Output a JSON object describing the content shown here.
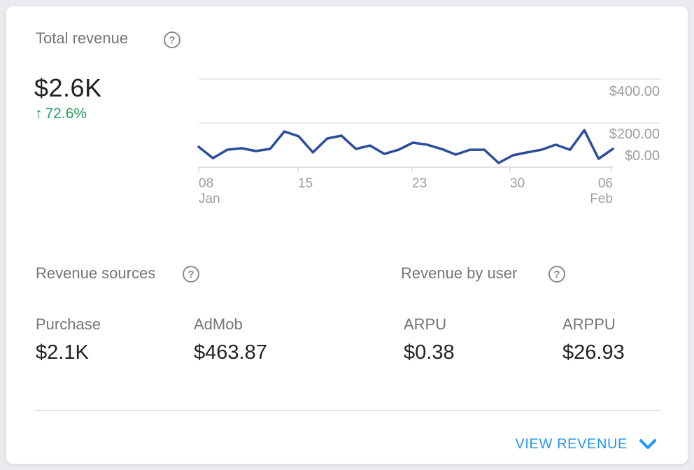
{
  "card": {
    "title": "Total revenue",
    "help_glyph": "?",
    "big_value": "$2.6K",
    "trend": {
      "arrow": "↑",
      "value": "72.6%",
      "color": "#1e9e5a"
    },
    "sections": [
      {
        "title": "Revenue sources",
        "metrics": [
          {
            "label": "Purchase",
            "value": "$2.1K"
          },
          {
            "label": "AdMob",
            "value": "$463.87"
          }
        ]
      },
      {
        "title": "Revenue by user",
        "metrics": [
          {
            "label": "ARPU",
            "value": "$0.38"
          },
          {
            "label": "ARPPU",
            "value": "$26.93"
          }
        ]
      }
    ],
    "footer": {
      "action_label": "VIEW REVENUE"
    }
  },
  "chart_data": {
    "type": "line",
    "title": "Total revenue (daily)",
    "x": [
      "Jan 08",
      "Jan 09",
      "Jan 10",
      "Jan 11",
      "Jan 12",
      "Jan 13",
      "Jan 14",
      "Jan 15",
      "Jan 16",
      "Jan 17",
      "Jan 18",
      "Jan 19",
      "Jan 20",
      "Jan 21",
      "Jan 22",
      "Jan 23",
      "Jan 24",
      "Jan 25",
      "Jan 26",
      "Jan 27",
      "Jan 28",
      "Jan 29",
      "Jan 30",
      "Jan 31",
      "Feb 01",
      "Feb 02",
      "Feb 03",
      "Feb 04",
      "Feb 05",
      "Feb 06"
    ],
    "series": [
      {
        "name": "Total revenue ($)",
        "values": [
          92,
          41,
          79,
          86,
          73,
          83,
          162,
          140,
          67,
          130,
          143,
          83,
          98,
          60,
          79,
          111,
          102,
          83,
          57,
          79,
          79,
          19,
          54,
          67,
          79,
          102,
          79,
          168,
          38,
          83
        ]
      }
    ],
    "line_color": "#2c4d9c",
    "grid": true,
    "legend": false,
    "y_axis": {
      "position": "right",
      "range": [
        0,
        400
      ],
      "tick_labels": [
        "$400.00",
        "$200.00",
        "$0.00"
      ]
    },
    "x_axis": {
      "tick_labels": [
        "08",
        "15",
        "23",
        "30",
        "06"
      ],
      "month_labels": [
        "Jan",
        "Feb"
      ]
    }
  }
}
